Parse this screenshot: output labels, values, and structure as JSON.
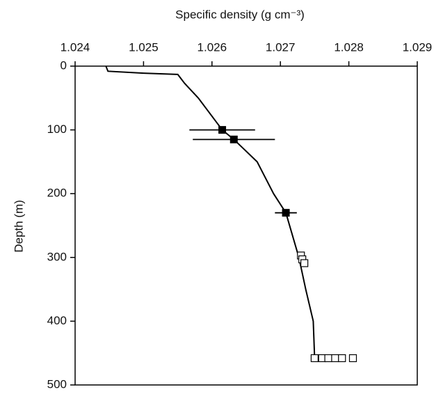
{
  "chart_data": {
    "type": "line",
    "xlabel": "Specific density (g cm⁻³)",
    "ylabel": "Depth (m)",
    "xlim": [
      1.024,
      1.029
    ],
    "xticks": [
      1.024,
      1.025,
      1.026,
      1.027,
      1.028,
      1.029
    ],
    "ylim": [
      0,
      500
    ],
    "yticks": [
      0,
      100,
      200,
      300,
      400,
      500
    ],
    "y_inverted": true,
    "x_axis_position": "top",
    "series": [
      {
        "type": "line",
        "color": "#000000",
        "x": [
          1.02445,
          1.02448,
          1.025,
          1.0255,
          1.0256,
          1.0258,
          1.02615,
          1.02632,
          1.02666,
          1.0269,
          1.02708,
          1.02727,
          1.02737,
          1.02748,
          1.0275
        ],
        "values": [
          0,
          8,
          11,
          13,
          27,
          50,
          100,
          115,
          150,
          200,
          230,
          300,
          350,
          400,
          458
        ]
      },
      {
        "type": "scatter",
        "marker": "filled-square",
        "color": "#000000",
        "x": [
          1.02615,
          1.02632,
          1.02708
        ],
        "values": [
          100,
          115,
          230
        ],
        "xerr": [
          0.00048,
          0.0006,
          0.00016
        ]
      },
      {
        "type": "scatter",
        "marker": "open-square",
        "color": "#000000",
        "x": [
          1.0273,
          1.02732,
          1.02735,
          1.0275,
          1.02761,
          1.0277,
          1.0278,
          1.0279,
          1.02806
        ],
        "values": [
          297,
          303,
          309,
          458,
          458,
          458,
          458,
          458,
          458
        ]
      }
    ]
  }
}
